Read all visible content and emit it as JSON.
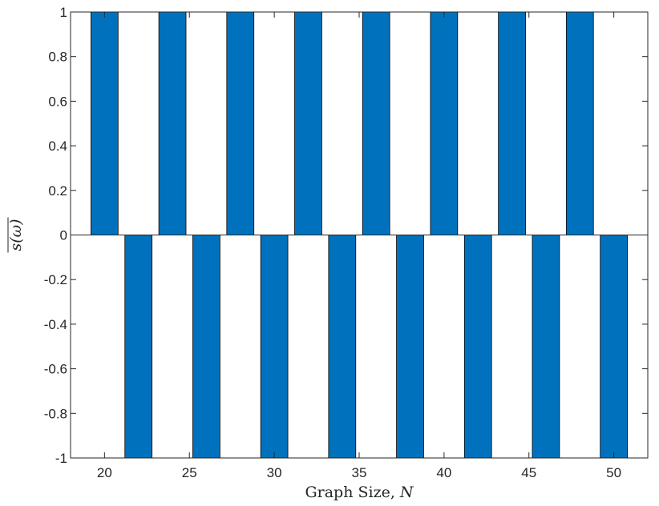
{
  "chart_data": {
    "type": "bar",
    "xlabel": "Graph Size, N",
    "ylabel": "s(ω)",
    "ylabel_overline": true,
    "xlim": [
      18,
      52
    ],
    "ylim": [
      -1,
      1
    ],
    "grid": false,
    "bar_color": "#0072bd",
    "bar_edge_color": "#000000",
    "xticks": [
      20,
      25,
      30,
      35,
      40,
      45,
      50
    ],
    "yticks": [
      -1,
      -0.8,
      -0.6,
      -0.4,
      -0.2,
      0,
      0.2,
      0.4,
      0.6,
      0.8,
      1
    ],
    "ytick_labels": [
      "-1",
      "-0.8",
      "-0.6",
      "-0.4",
      "-0.2",
      "0",
      "0.2",
      "0.4",
      "0.6",
      "0.8",
      "1"
    ],
    "x": [
      20,
      22,
      24,
      26,
      28,
      30,
      32,
      34,
      36,
      38,
      40,
      42,
      44,
      46,
      48,
      50
    ],
    "values": [
      1,
      -1,
      1,
      -1,
      1,
      -1,
      1,
      -1,
      1,
      -1,
      1,
      -1,
      1,
      -1,
      1,
      -1
    ]
  }
}
